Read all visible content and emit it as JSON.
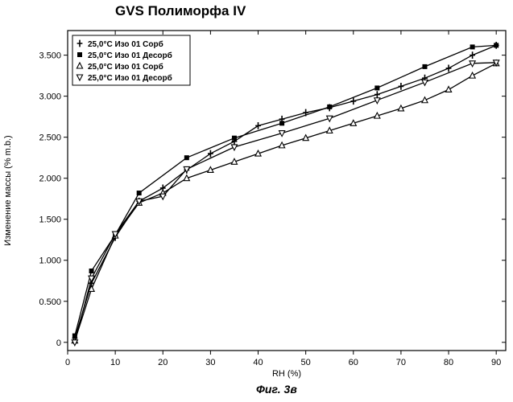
{
  "title": "GVS Полиморфа IV",
  "caption": "Фиг. 3в",
  "chart_data": {
    "type": "line",
    "title": "GVS Полиморфа IV",
    "xlabel": "RH (%)",
    "ylabel": "Изменение массы (% m.b.)",
    "xlim": [
      0,
      92
    ],
    "ylim": [
      -0.1,
      3.8
    ],
    "xticks": [
      0,
      10,
      20,
      30,
      40,
      50,
      60,
      70,
      80,
      90
    ],
    "yticks": [
      0,
      0.5,
      1.0,
      1.5,
      2.0,
      2.5,
      3.0,
      3.5
    ],
    "ytick_labels": [
      "0",
      "0.500",
      "1.000",
      "1.500",
      "2.000",
      "2.500",
      "3.000",
      "3.500"
    ],
    "grid": false,
    "legend_position": "top-left",
    "series": [
      {
        "name": "25,0°C Изо 01 Сорб",
        "marker": "plus",
        "x": [
          1.5,
          5,
          10,
          15,
          20,
          25,
          30,
          35,
          40,
          45,
          50,
          55,
          60,
          65,
          70,
          75,
          80,
          85,
          90
        ],
        "y": [
          0.05,
          0.72,
          1.28,
          1.72,
          1.88,
          2.1,
          2.3,
          2.45,
          2.64,
          2.72,
          2.8,
          2.86,
          2.94,
          3.02,
          3.12,
          3.22,
          3.34,
          3.5,
          3.62
        ]
      },
      {
        "name": "25,0°C Изо 01 Десорб",
        "marker": "square",
        "x": [
          90,
          85,
          75,
          65,
          55,
          45,
          35,
          25,
          15,
          10,
          5,
          1.5
        ],
        "y": [
          3.62,
          3.6,
          3.36,
          3.1,
          2.87,
          2.67,
          2.49,
          2.25,
          1.82,
          1.31,
          0.87,
          0.08
        ]
      },
      {
        "name": "25,0°C Изо 01 Сорб",
        "marker": "triangle-up",
        "x": [
          1.5,
          5,
          10,
          15,
          20,
          25,
          30,
          35,
          40,
          45,
          50,
          55,
          60,
          65,
          70,
          75,
          80,
          85,
          90
        ],
        "y": [
          0.02,
          0.65,
          1.3,
          1.7,
          1.82,
          2.0,
          2.1,
          2.2,
          2.3,
          2.4,
          2.49,
          2.58,
          2.67,
          2.76,
          2.85,
          2.95,
          3.08,
          3.25,
          3.4
        ]
      },
      {
        "name": "25,0°C Изо 01 Десорб",
        "marker": "triangle-down",
        "x": [
          90,
          85,
          75,
          65,
          55,
          45,
          35,
          25,
          20,
          15,
          10,
          5,
          1.5
        ],
        "y": [
          3.41,
          3.4,
          3.17,
          2.95,
          2.73,
          2.55,
          2.38,
          2.11,
          1.78,
          1.72,
          1.32,
          0.78,
          0.0
        ]
      }
    ]
  }
}
